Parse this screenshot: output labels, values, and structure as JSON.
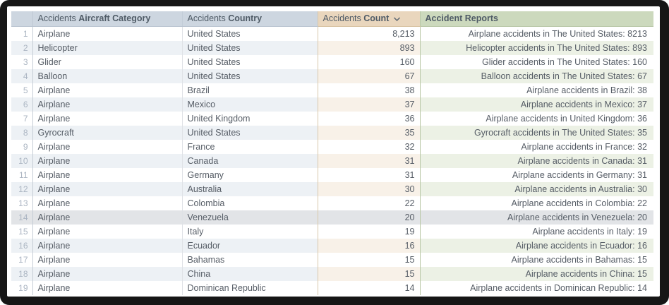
{
  "table": {
    "columns": [
      {
        "prefix": "Accidents",
        "label": "Aircraft Category"
      },
      {
        "prefix": "Accidents",
        "label": "Country"
      },
      {
        "prefix": "Accidents",
        "label": "Count",
        "sort": "descending",
        "sort_icon": "chevron-down-icon"
      },
      {
        "label": "Accident Reports"
      }
    ],
    "hovered_row": 14,
    "rows": [
      {
        "n": 1,
        "category": "Airplane",
        "country": "United States",
        "count": "8,213",
        "report": "Airplane accidents in The United States: 8213"
      },
      {
        "n": 2,
        "category": "Helicopter",
        "country": "United States",
        "count": "893",
        "report": "Helicopter accidents in The United States: 893"
      },
      {
        "n": 3,
        "category": "Glider",
        "country": "United States",
        "count": "160",
        "report": "Glider accidents in The United States: 160"
      },
      {
        "n": 4,
        "category": "Balloon",
        "country": "United States",
        "count": "67",
        "report": "Balloon accidents in The United States: 67"
      },
      {
        "n": 5,
        "category": "Airplane",
        "country": "Brazil",
        "count": "38",
        "report": "Airplane accidents in Brazil: 38"
      },
      {
        "n": 6,
        "category": "Airplane",
        "country": "Mexico",
        "count": "37",
        "report": "Airplane accidents in Mexico: 37"
      },
      {
        "n": 7,
        "category": "Airplane",
        "country": "United Kingdom",
        "count": "36",
        "report": "Airplane accidents in United Kingdom: 36"
      },
      {
        "n": 8,
        "category": "Gyrocraft",
        "country": "United States",
        "count": "35",
        "report": "Gyrocraft accidents in The United States: 35"
      },
      {
        "n": 9,
        "category": "Airplane",
        "country": "France",
        "count": "32",
        "report": "Airplane accidents in France: 32"
      },
      {
        "n": 10,
        "category": "Airplane",
        "country": "Canada",
        "count": "31",
        "report": "Airplane accidents in Canada: 31"
      },
      {
        "n": 11,
        "category": "Airplane",
        "country": "Germany",
        "count": "31",
        "report": "Airplane accidents in Germany: 31"
      },
      {
        "n": 12,
        "category": "Airplane",
        "country": "Australia",
        "count": "30",
        "report": "Airplane accidents in Australia: 30"
      },
      {
        "n": 13,
        "category": "Airplane",
        "country": "Colombia",
        "count": "22",
        "report": "Airplane accidents in Colombia: 22"
      },
      {
        "n": 14,
        "category": "Airplane",
        "country": "Venezuela",
        "count": "20",
        "report": "Airplane accidents in Venezuela: 20"
      },
      {
        "n": 15,
        "category": "Airplane",
        "country": "Italy",
        "count": "19",
        "report": "Airplane accidents in Italy: 19"
      },
      {
        "n": 16,
        "category": "Airplane",
        "country": "Ecuador",
        "count": "16",
        "report": "Airplane accidents in Ecuador: 16"
      },
      {
        "n": 17,
        "category": "Airplane",
        "country": "Bahamas",
        "count": "15",
        "report": "Airplane accidents in Bahamas: 15"
      },
      {
        "n": 18,
        "category": "Airplane",
        "country": "China",
        "count": "15",
        "report": "Airplane accidents in China: 15"
      },
      {
        "n": 19,
        "category": "Airplane",
        "country": "Dominican Republic",
        "count": "14",
        "report": "Airplane accidents in Dominican Republic: 14"
      }
    ]
  },
  "colors": {
    "header_blue": "#cdd6e0",
    "header_tan": "#e9d6bd",
    "header_green": "#ccd9bd",
    "stripe_blue": "#edf1f5",
    "stripe_tan": "#f8f1e8",
    "stripe_green": "#ecf1e5",
    "hover_gray": "#e2e4e7",
    "frame_black": "#161616"
  }
}
